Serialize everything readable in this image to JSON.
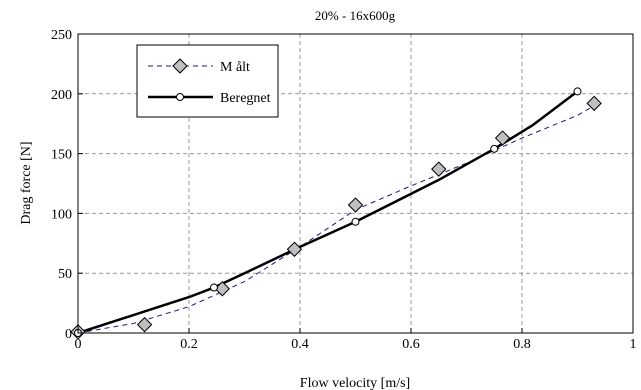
{
  "chart_data": {
    "type": "line",
    "title": "20% - 16x600g",
    "xlabel": "Flow velocity [m/s]",
    "ylabel": "Drag force  [N]",
    "xlim": [
      0,
      1
    ],
    "ylim": [
      0,
      250
    ],
    "xticks": [
      "0",
      "0.2",
      "0.4",
      "0.6",
      "0.8",
      "1"
    ],
    "yticks": [
      "0",
      "50",
      "100",
      "150",
      "200",
      "250"
    ],
    "grid": true,
    "legend_position": "top-left",
    "series": [
      {
        "name": "M ålt",
        "style": "dashed",
        "marker": "diamond",
        "color": "#1a1a7a",
        "marker_fill": "#bfbfbf",
        "points": [
          {
            "x": 0.0,
            "y": 1
          },
          {
            "x": 0.12,
            "y": 7
          },
          {
            "x": 0.26,
            "y": 37
          },
          {
            "x": 0.39,
            "y": 70
          },
          {
            "x": 0.5,
            "y": 107
          },
          {
            "x": 0.65,
            "y": 137
          },
          {
            "x": 0.765,
            "y": 163
          },
          {
            "x": 0.93,
            "y": 192
          }
        ],
        "fit_line": [
          {
            "x": 0.0,
            "y": 0
          },
          {
            "x": 0.1,
            "y": 8
          },
          {
            "x": 0.2,
            "y": 22
          },
          {
            "x": 0.3,
            "y": 43
          },
          {
            "x": 0.4,
            "y": 72
          },
          {
            "x": 0.5,
            "y": 103
          },
          {
            "x": 0.6,
            "y": 123
          },
          {
            "x": 0.7,
            "y": 142
          },
          {
            "x": 0.8,
            "y": 163
          },
          {
            "x": 0.9,
            "y": 182
          },
          {
            "x": 0.93,
            "y": 190
          }
        ]
      },
      {
        "name": "Beregnet",
        "style": "solid",
        "marker": "circle",
        "color": "#000000",
        "marker_fill": "#ffffff",
        "points": [
          {
            "x": 0.0,
            "y": 0
          },
          {
            "x": 0.245,
            "y": 38
          },
          {
            "x": 0.5,
            "y": 93
          },
          {
            "x": 0.75,
            "y": 154
          },
          {
            "x": 0.9,
            "y": 202
          }
        ],
        "fit_line": [
          {
            "x": 0.0,
            "y": 0
          },
          {
            "x": 0.06,
            "y": 9
          },
          {
            "x": 0.12,
            "y": 18
          },
          {
            "x": 0.2,
            "y": 30
          },
          {
            "x": 0.245,
            "y": 38
          },
          {
            "x": 0.3,
            "y": 50
          },
          {
            "x": 0.4,
            "y": 72
          },
          {
            "x": 0.5,
            "y": 93
          },
          {
            "x": 0.65,
            "y": 128
          },
          {
            "x": 0.75,
            "y": 154
          },
          {
            "x": 0.82,
            "y": 174
          },
          {
            "x": 0.9,
            "y": 202
          }
        ]
      }
    ]
  }
}
